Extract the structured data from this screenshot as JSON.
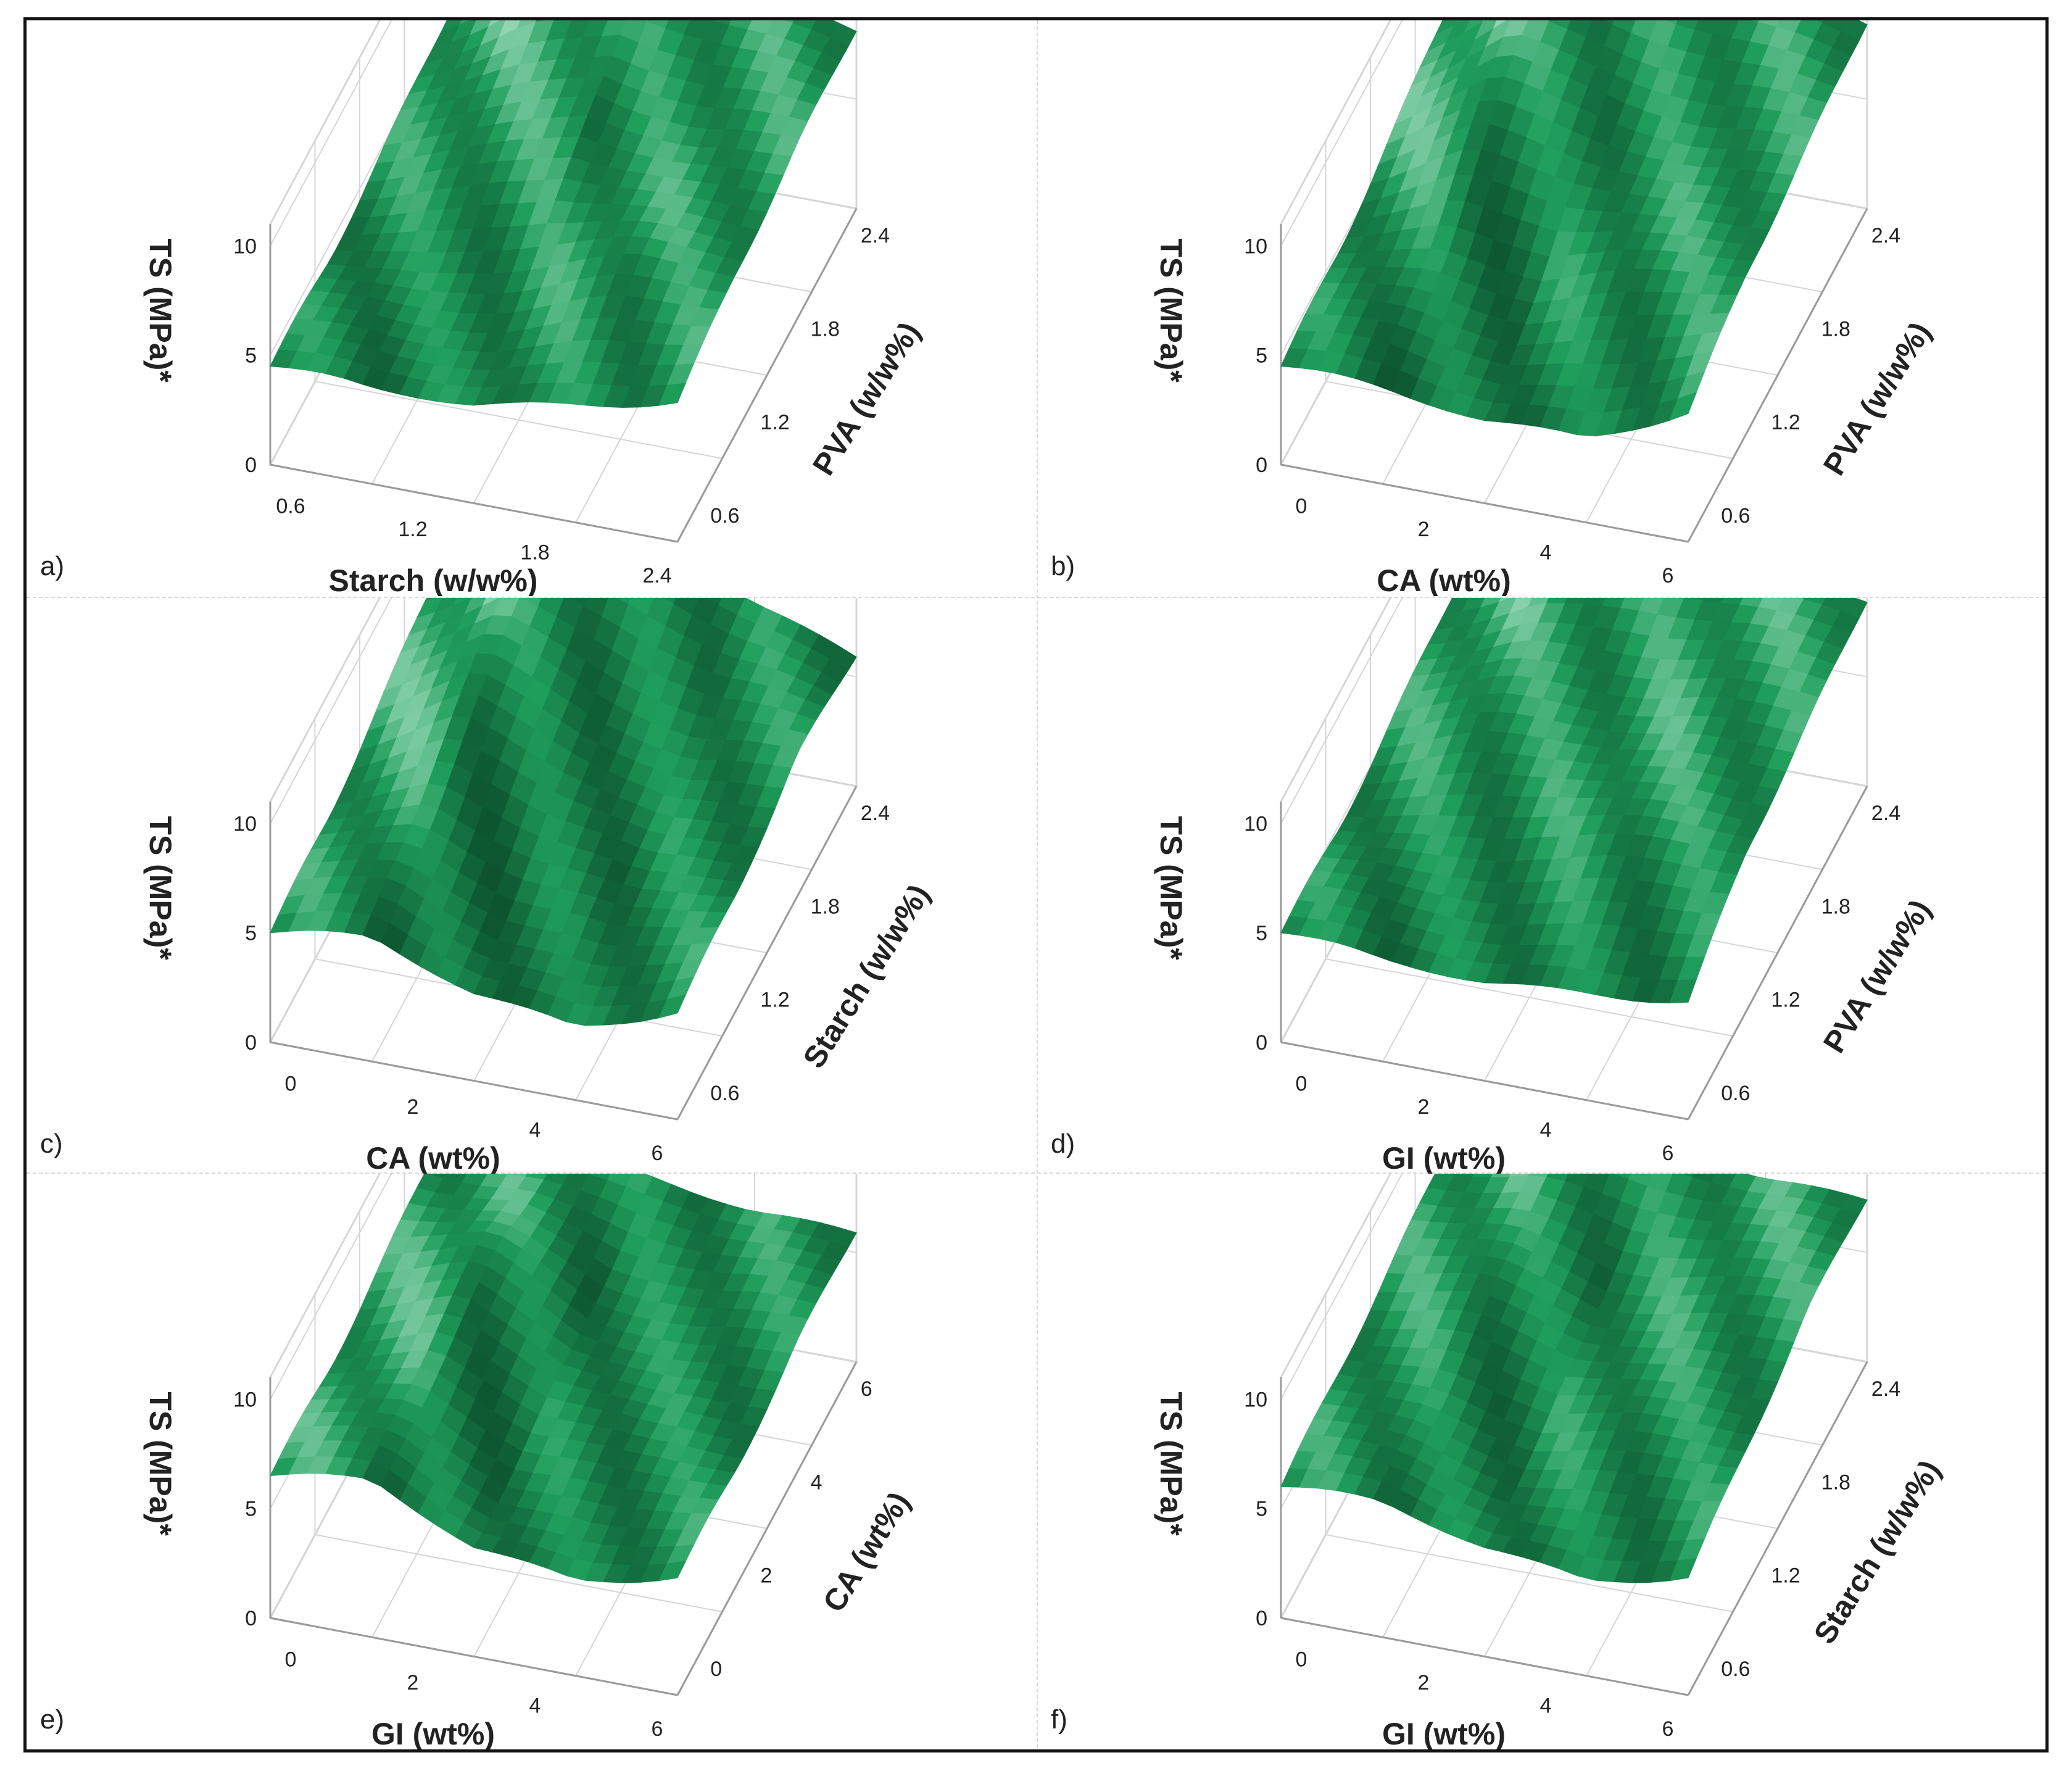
{
  "figure": {
    "colors": {
      "surface_dark": "#0a4a28",
      "surface_mid": "#1f9e5c",
      "surface_light": "#e8fff2",
      "grid": "#d6d6d6",
      "axis": "#9a9a9a",
      "text": "#222222"
    }
  },
  "chart_data": [
    {
      "id": "a",
      "panel_label": "a)",
      "type": "surface3d",
      "zlabel": "TS (MPa)*",
      "xlabel": "Starch (w/w%)",
      "ylabel": "PVA (w/w%)",
      "zticks": [
        "0",
        "5",
        "10"
      ],
      "xticks": [
        "0.6",
        "1.2",
        "1.8",
        "2.4"
      ],
      "yticks": [
        "0.6",
        "1.2",
        "1.8",
        "2.4"
      ],
      "zlim": [
        0,
        10
      ],
      "z_grid": [
        [
          5.5,
          9.0,
          9.8,
          9.0,
          8.2
        ],
        [
          5.0,
          6.5,
          8.5,
          7.5,
          8.0
        ],
        [
          4.5,
          4.8,
          6.0,
          7.2,
          7.5
        ],
        [
          4.5,
          4.2,
          4.5,
          5.5,
          6.5
        ]
      ]
    },
    {
      "id": "b",
      "panel_label": "b)",
      "type": "surface3d",
      "zlabel": "TS (MPa)*",
      "xlabel": "CA (wt%)",
      "ylabel": "PVA (w/w%)",
      "zticks": [
        "0",
        "5",
        "10"
      ],
      "xticks": [
        "0",
        "2",
        "4",
        "6"
      ],
      "yticks": [
        "0.6",
        "1.2",
        "1.8",
        "2.4"
      ],
      "zlim": [
        0,
        10
      ],
      "z_grid": [
        [
          7.0,
          11.5,
          10.0,
          9.5,
          8.5
        ],
        [
          6.0,
          9.0,
          8.5,
          7.5,
          8.0
        ],
        [
          5.0,
          6.0,
          5.5,
          6.5,
          7.5
        ],
        [
          4.5,
          4.2,
          3.8,
          4.0,
          6.0
        ]
      ]
    },
    {
      "id": "c",
      "panel_label": "c)",
      "type": "surface3d",
      "zlabel": "TS (MPa)*",
      "xlabel": "CA (wt%)",
      "ylabel": "Starch (w/w%)",
      "zticks": [
        "0",
        "5",
        "10"
      ],
      "xticks": [
        "0",
        "2",
        "4",
        "6"
      ],
      "yticks": [
        "0.6",
        "1.2",
        "1.8",
        "2.4"
      ],
      "zlim": [
        0,
        10
      ],
      "z_grid": [
        [
          7.5,
          11.0,
          9.5,
          7.5,
          6.0
        ],
        [
          6.5,
          9.0,
          7.5,
          6.0,
          6.5
        ],
        [
          5.5,
          7.0,
          5.5,
          4.5,
          5.5
        ],
        [
          5.0,
          5.5,
          4.0,
          3.5,
          5.0
        ]
      ]
    },
    {
      "id": "d",
      "panel_label": "d)",
      "type": "surface3d",
      "zlabel": "TS (MPa)*",
      "xlabel": "GI (wt%)",
      "ylabel": "PVA (w/w%)",
      "zticks": [
        "0",
        "5",
        "10"
      ],
      "xticks": [
        "0",
        "2",
        "4",
        "6"
      ],
      "yticks": [
        "0.6",
        "1.2",
        "1.8",
        "2.4"
      ],
      "zlim": [
        0,
        10
      ],
      "z_grid": [
        [
          6.0,
          8.5,
          9.0,
          8.8,
          8.5
        ],
        [
          5.5,
          7.0,
          7.5,
          8.0,
          8.0
        ],
        [
          5.0,
          5.5,
          6.5,
          7.0,
          7.5
        ],
        [
          5.0,
          4.5,
          4.5,
          5.0,
          5.5
        ]
      ]
    },
    {
      "id": "e",
      "panel_label": "e)",
      "type": "surface3d",
      "zlabel": "TS (MPa)*",
      "xlabel": "GI (wt%)",
      "ylabel": "CA (wt%)",
      "zticks": [
        "0",
        "5",
        "10"
      ],
      "xticks": [
        "0",
        "2",
        "4",
        "6"
      ],
      "yticks": [
        "0",
        "2",
        "4",
        "6"
      ],
      "zlim": [
        0,
        10
      ],
      "z_grid": [
        [
          7.5,
          7.0,
          6.5,
          6.0,
          6.0
        ],
        [
          7.0,
          8.0,
          6.0,
          5.5,
          6.0
        ],
        [
          6.5,
          7.5,
          5.5,
          5.0,
          5.5
        ],
        [
          6.5,
          7.0,
          5.0,
          4.5,
          5.5
        ]
      ]
    },
    {
      "id": "f",
      "panel_label": "f)",
      "type": "surface3d",
      "zlabel": "TS (MPa)*",
      "xlabel": "GI (wt%)",
      "ylabel": "Starch (w/w%)",
      "zticks": [
        "0",
        "5",
        "10"
      ],
      "xticks": [
        "0",
        "2",
        "4",
        "6"
      ],
      "yticks": [
        "0.6",
        "1.2",
        "1.8",
        "2.4"
      ],
      "zlim": [
        0,
        10
      ],
      "z_grid": [
        [
          7.5,
          8.5,
          8.0,
          7.5,
          7.5
        ],
        [
          7.0,
          7.5,
          6.5,
          7.0,
          7.5
        ],
        [
          6.5,
          6.5,
          5.5,
          6.0,
          6.5
        ],
        [
          6.0,
          6.0,
          5.0,
          4.5,
          5.5
        ]
      ]
    }
  ]
}
